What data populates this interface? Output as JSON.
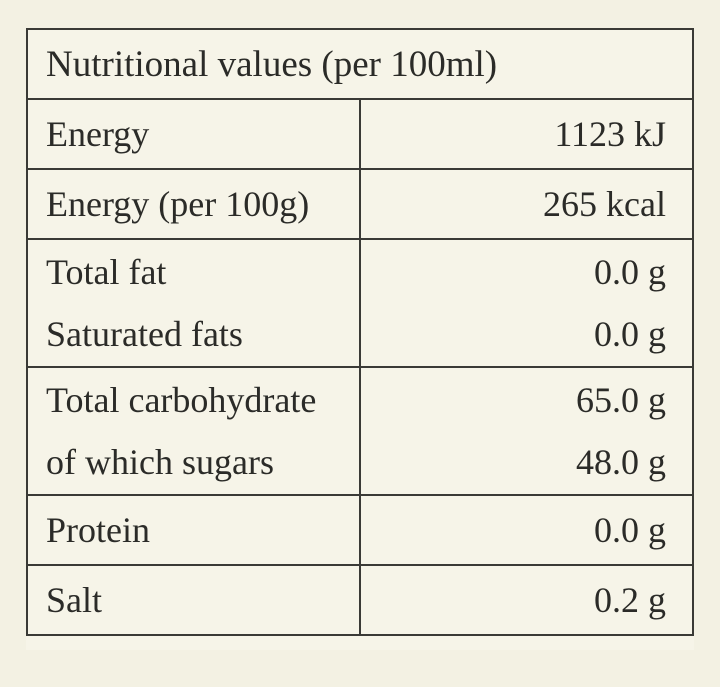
{
  "table": {
    "title": "Nutritional values (per 100ml)",
    "rows": [
      {
        "labels": [
          "Energy"
        ],
        "values": [
          "1123 kJ"
        ]
      },
      {
        "labels": [
          "Energy (per 100g)"
        ],
        "values": [
          "265 kcal"
        ]
      },
      {
        "labels": [
          "Total fat",
          "Saturated fats"
        ],
        "values": [
          "0.0 g",
          "0.0 g"
        ]
      },
      {
        "labels": [
          "Total carbohydrate",
          "of which sugars"
        ],
        "values": [
          "65.0 g",
          "48.0 g"
        ]
      },
      {
        "labels": [
          "Protein"
        ],
        "values": [
          "0.0 g"
        ]
      },
      {
        "labels": [
          "Salt"
        ],
        "values": [
          "0.2 g"
        ]
      }
    ]
  }
}
